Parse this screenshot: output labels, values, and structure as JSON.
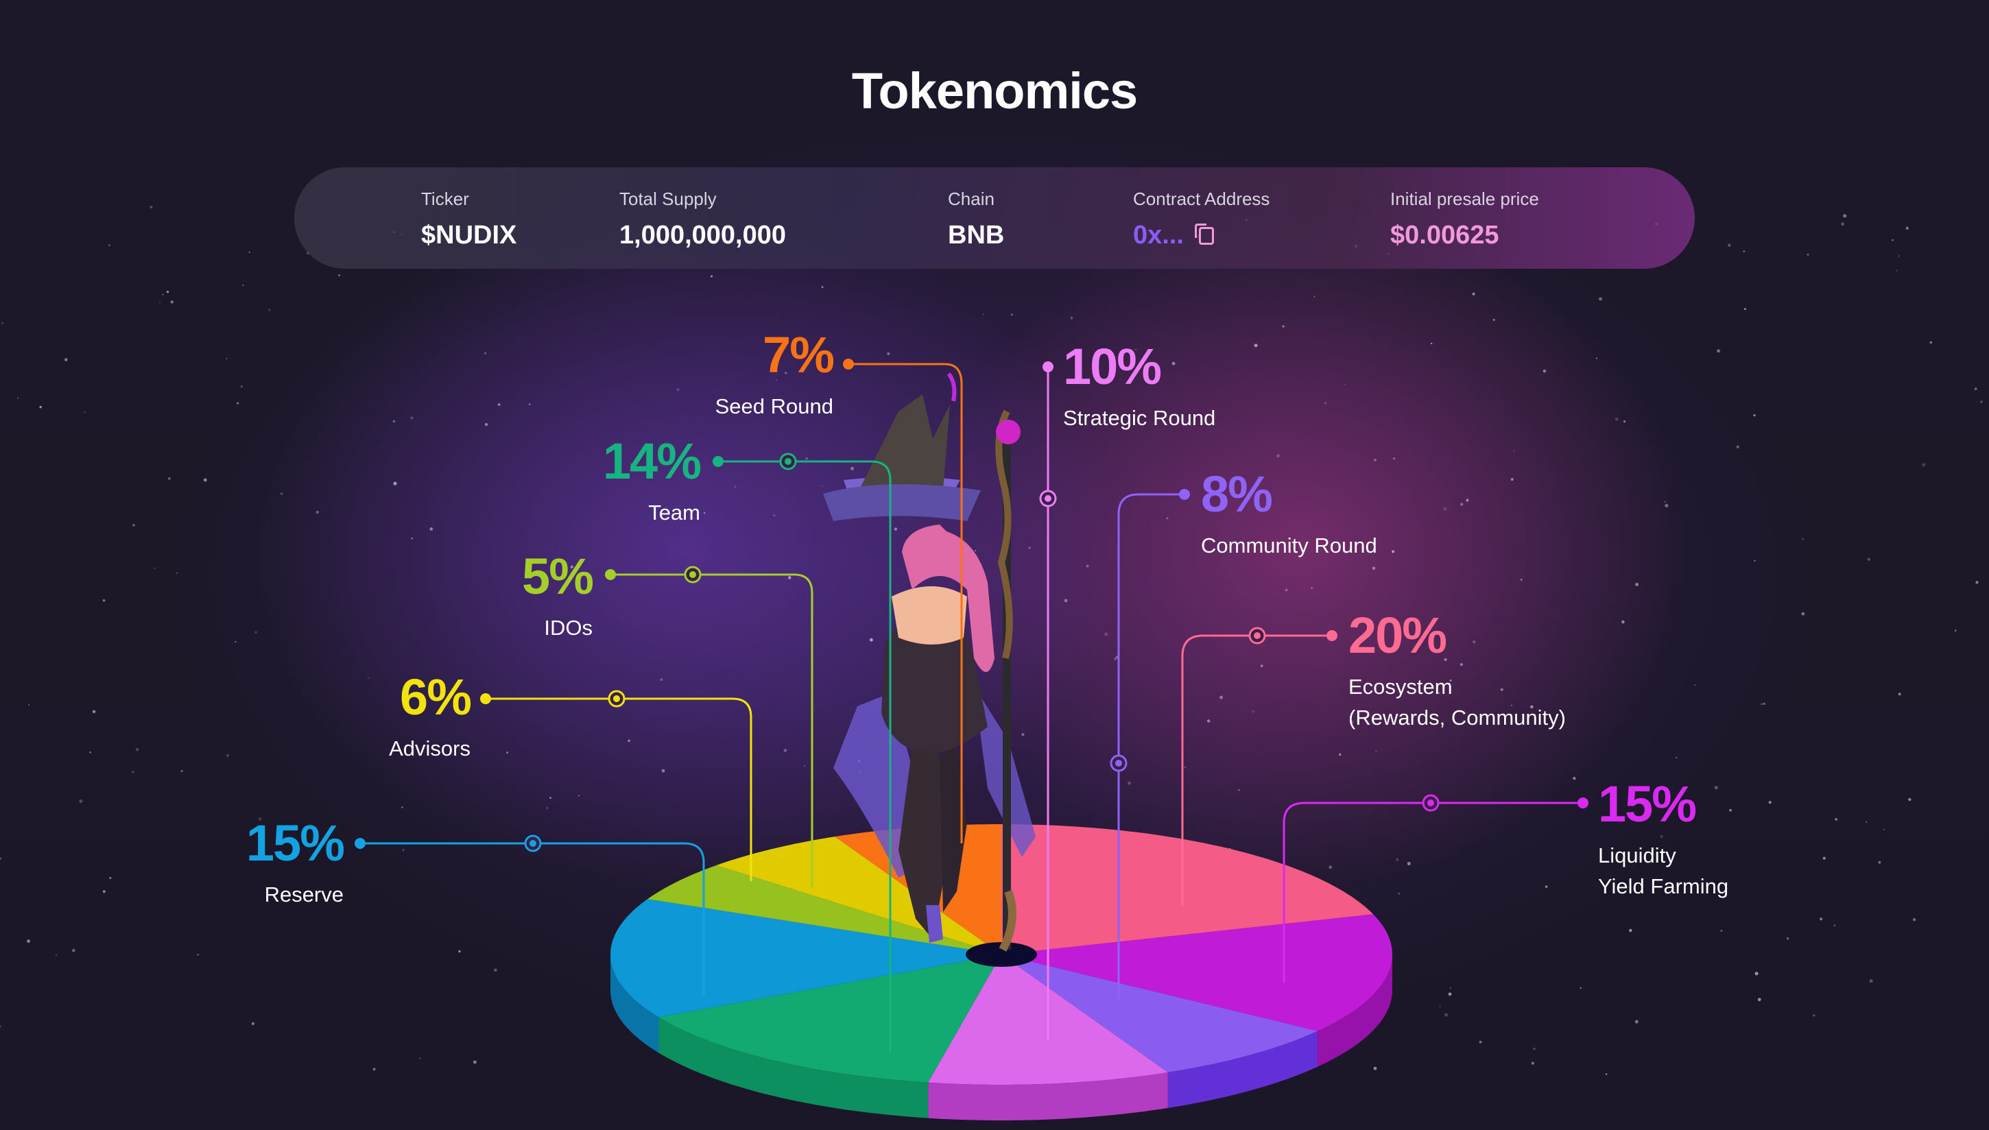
{
  "title": "Tokenomics",
  "info": {
    "ticker_label": "Ticker",
    "ticker": "$NUDIX",
    "supply_label": "Total Supply",
    "supply": "1,000,000,000",
    "chain_label": "Chain",
    "chain": "BNB",
    "contract_label": "Contract Address",
    "contract": "0x...",
    "contract_icon": "copy-icon",
    "price_label": "Initial presale price",
    "price": "$0.00625"
  },
  "colors": {
    "contract": "#8b5cf6",
    "price": "#f29ad9"
  },
  "chart_data": {
    "type": "pie",
    "style": "3d",
    "categories": [
      "Ecosystem (Rewards, Community)",
      "Liquidity Yield Farming",
      "Community Round",
      "Strategic Round",
      "Team",
      "Reserve",
      "IDOs",
      "Advisors",
      "Seed Round"
    ],
    "values": [
      20,
      15,
      8,
      10,
      14,
      15,
      5,
      6,
      7
    ],
    "colors": [
      "#f45b87",
      "#c01cd8",
      "#8b5cf0",
      "#dc68ec",
      "#13aa72",
      "#0e98d6",
      "#97c11e",
      "#e0cb00",
      "#f97316"
    ],
    "side_colors": [
      "#c9406c",
      "#9712ab",
      "#6330d8",
      "#b23cc2",
      "#0c9060",
      "#0874a8",
      "#7a9c14",
      "#b8a600",
      "#c9580e"
    ],
    "labels": {
      "seed": {
        "pct": "7%",
        "lines": [
          "Seed Round"
        ],
        "color": "#f97316"
      },
      "team": {
        "pct": "14%",
        "lines": [
          "Team"
        ],
        "color": "#17b481"
      },
      "idos": {
        "pct": "5%",
        "lines": [
          "IDOs"
        ],
        "color": "#a3cf28"
      },
      "advisors": {
        "pct": "6%",
        "lines": [
          "Advisors"
        ],
        "color": "#f2e30c"
      },
      "reserve": {
        "pct": "15%",
        "lines": [
          "Reserve"
        ],
        "color": "#13a3e2"
      },
      "strategic": {
        "pct": "10%",
        "lines": [
          "Strategic Round"
        ],
        "color": "#ec7df5"
      },
      "community": {
        "pct": "8%",
        "lines": [
          "Community Round"
        ],
        "color": "#8f63f6"
      },
      "ecosystem": {
        "pct": "20%",
        "lines": [
          "Ecosystem",
          "(Rewards, Community)"
        ],
        "color": "#ff6b93"
      },
      "liquidity": {
        "pct": "15%",
        "lines": [
          "Liquidity",
          "Yield Farming"
        ],
        "color": "#da2af2"
      }
    }
  }
}
